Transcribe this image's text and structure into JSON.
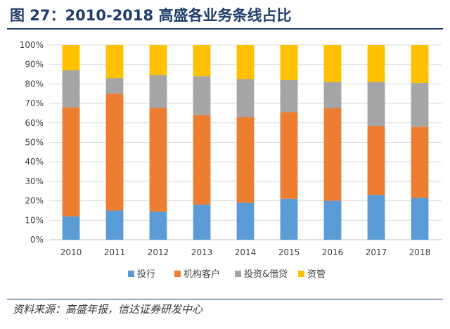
{
  "title": "图 27：2010-2018 高盛各业务条线占比",
  "source": "资料来源：高盛年报，信达证券研发中心",
  "chart_data": {
    "type": "bar",
    "stacked": true,
    "categories": [
      "2010",
      "2011",
      "2012",
      "2013",
      "2014",
      "2015",
      "2016",
      "2017",
      "2018"
    ],
    "series": [
      {
        "name": "投行",
        "color": "#5b9bd5",
        "values": [
          12,
          15,
          14.5,
          18,
          19,
          21,
          20,
          23,
          21.5
        ]
      },
      {
        "name": "机构客户",
        "color": "#ed7d31",
        "values": [
          56,
          60,
          53,
          46,
          44,
          44.5,
          47.5,
          35.5,
          36.5
        ]
      },
      {
        "name": "投资&借贷",
        "color": "#a5a5a5",
        "values": [
          19,
          8,
          17,
          20,
          19.5,
          16.5,
          13.5,
          22.5,
          22.5
        ]
      },
      {
        "name": "资管",
        "color": "#ffc000",
        "values": [
          13,
          17,
          15.5,
          16,
          17.5,
          18,
          19,
          19,
          19.5
        ]
      }
    ],
    "ylim": [
      0,
      100
    ],
    "yticks": [
      "0%",
      "10%",
      "20%",
      "30%",
      "40%",
      "50%",
      "60%",
      "70%",
      "80%",
      "90%",
      "100%"
    ],
    "grid": true,
    "legend_position": "bottom"
  }
}
